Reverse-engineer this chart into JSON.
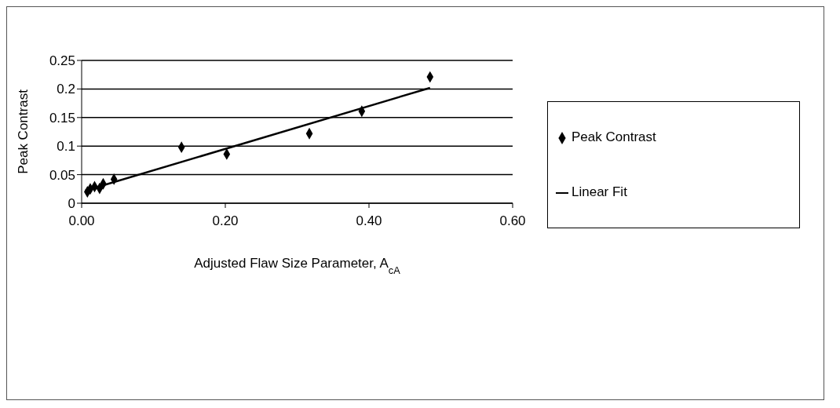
{
  "chart_data": {
    "type": "scatter",
    "xlabel": "Adjusted Flaw Size Parameter, A$_{cA}$",
    "ylabel": "Peak Contrast",
    "xlim": [
      0,
      0.6
    ],
    "xticks": [
      {
        "value": 0,
        "label": "0.00"
      },
      {
        "value": 0.2,
        "label": "0.20"
      },
      {
        "value": 0.4,
        "label": "0.40"
      },
      {
        "value": 0.6,
        "label": "0.60"
      }
    ],
    "ylim": [
      0,
      0.25
    ],
    "yticks": [
      0,
      0.05,
      0.1,
      0.15,
      0.2,
      0.25
    ],
    "grid": "y",
    "legend": "right",
    "series": [
      {
        "name": "Peak Contrast",
        "marker": "diamond",
        "color": "#000000",
        "x": [
          0.008,
          0.012,
          0.018,
          0.025,
          0.03,
          0.045,
          0.139,
          0.202,
          0.317,
          0.39,
          0.485
        ],
        "values": [
          0.02,
          0.025,
          0.029,
          0.026,
          0.034,
          0.042,
          0.098,
          0.086,
          0.122,
          0.161,
          0.221
        ]
      },
      {
        "name": "Linear Fit",
        "type": "line",
        "marker": "none",
        "line_style": "solid",
        "color": "#000000",
        "x": [
          0.005,
          0.485
        ],
        "values": [
          0.022,
          0.202
        ]
      }
    ]
  }
}
